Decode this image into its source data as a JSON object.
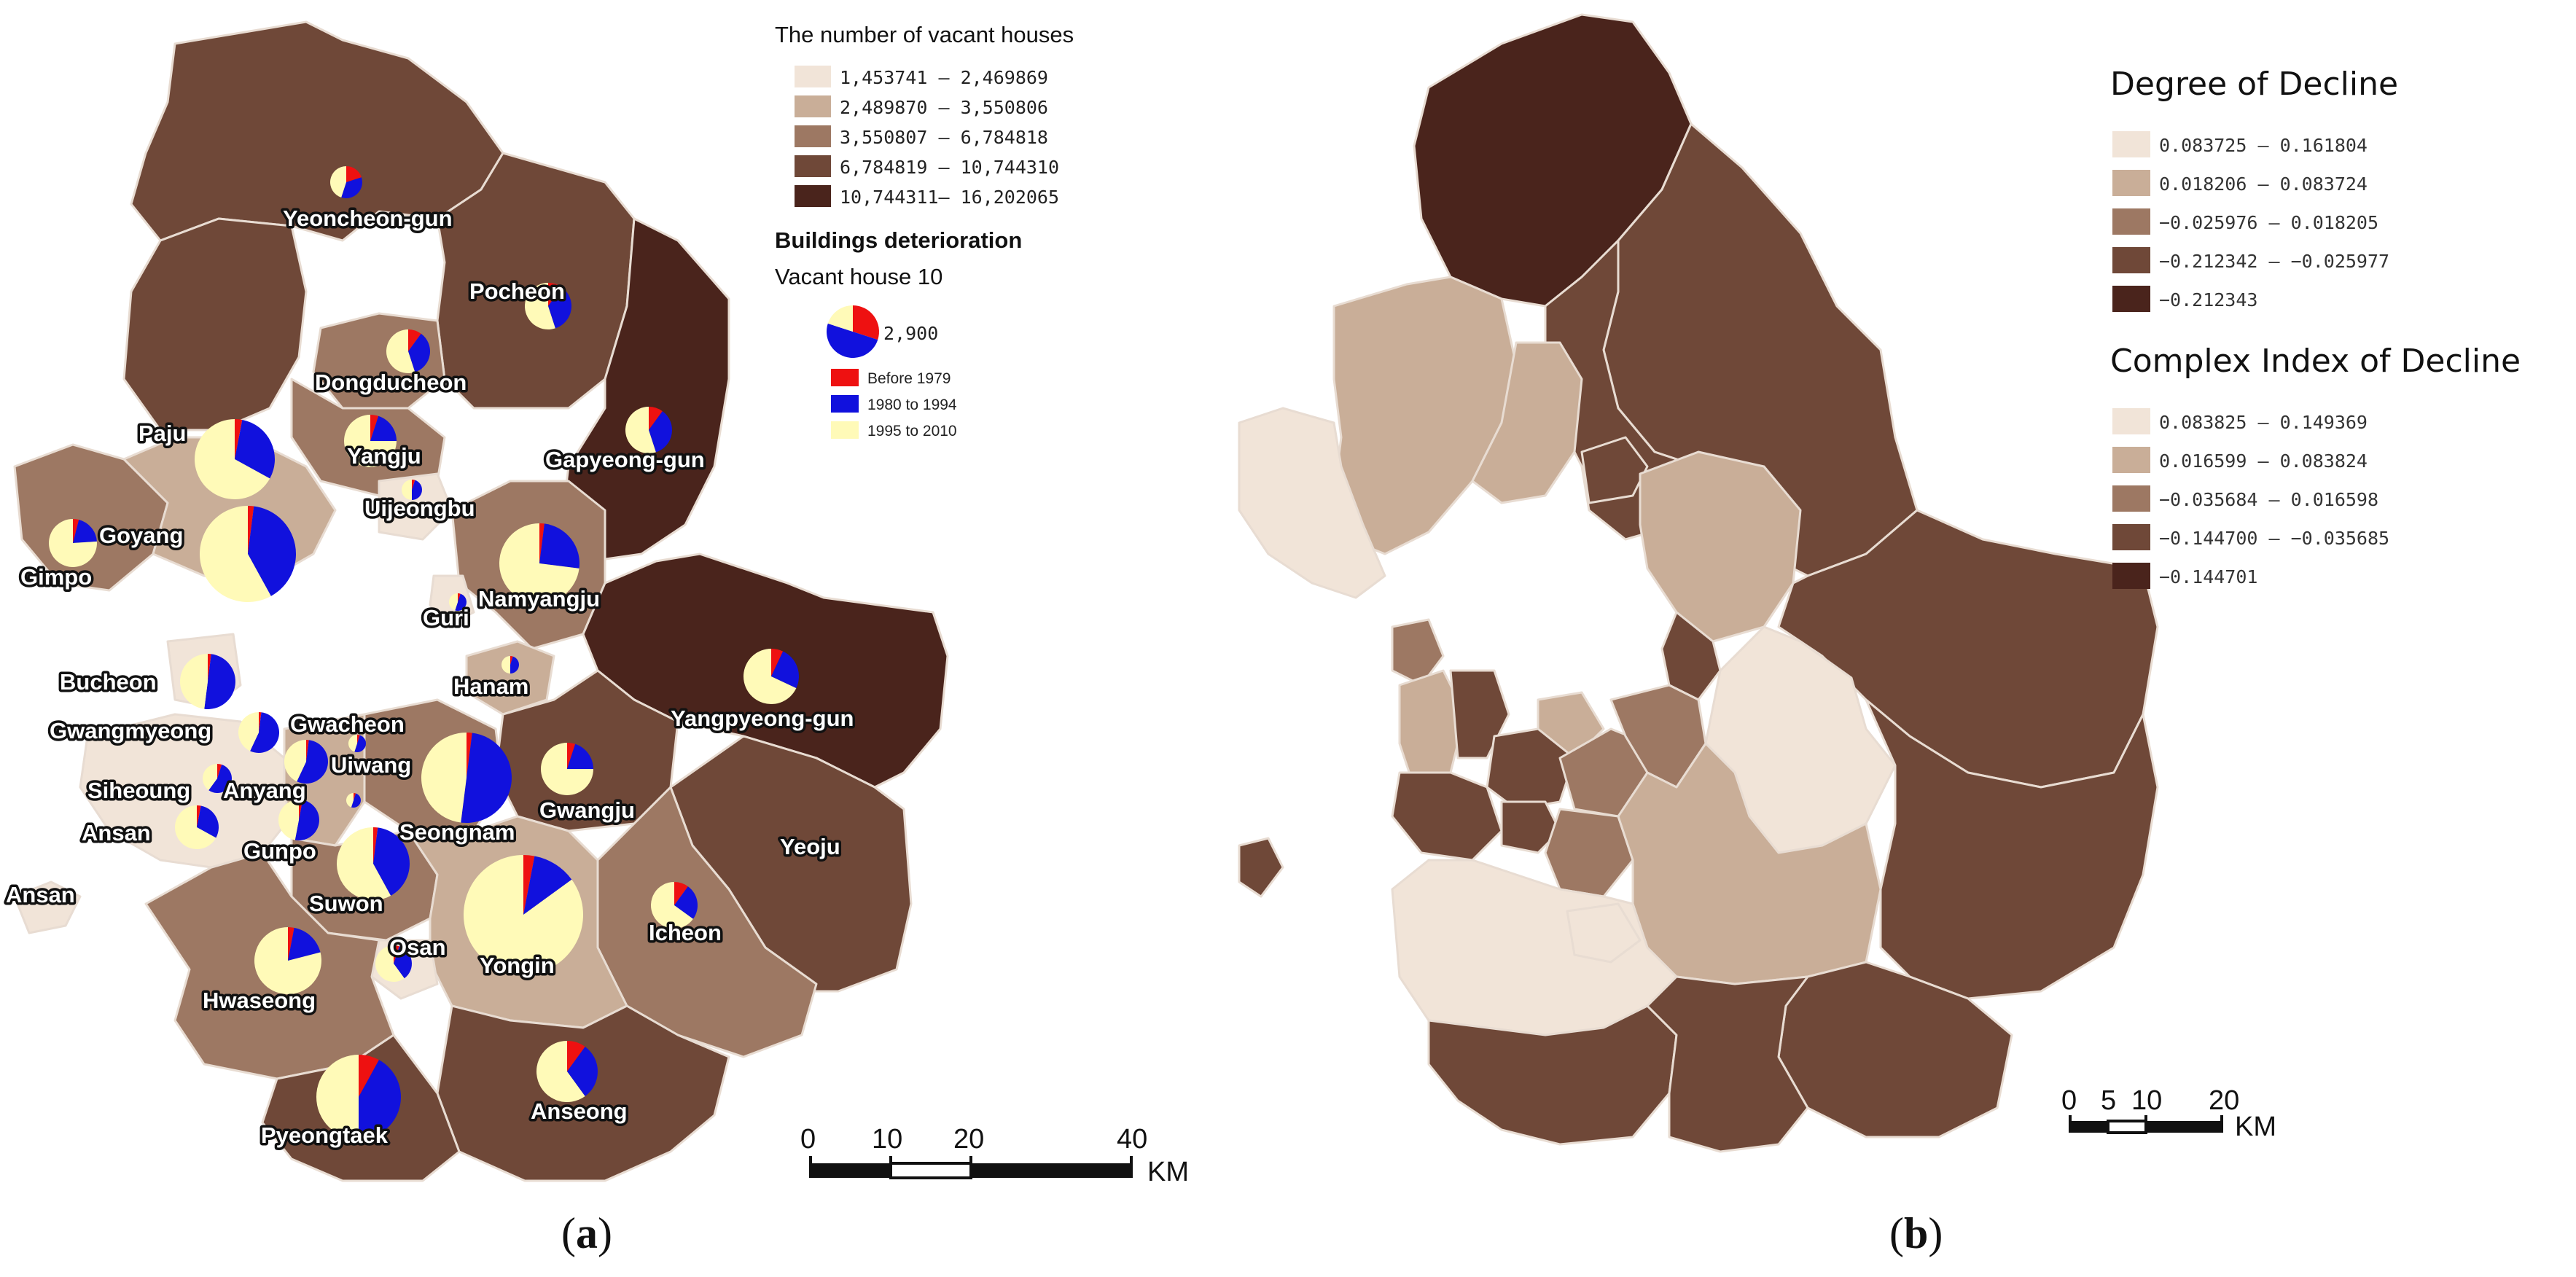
{
  "colors": {
    "class1": "#f1e4d8",
    "class2": "#c9ae98",
    "class3": "#9d7863",
    "class4": "#6f4838",
    "class5": "#4a241c",
    "pie_before1979": "#ee1111",
    "pie_1980_1994": "#1111dd",
    "pie_1995_2010": "#fffab8"
  },
  "panel_a": {
    "caption_letter": "a",
    "legend": {
      "title": "The number of vacant houses",
      "classes": [
        "1,453741 – 2,469869",
        "2,489870 – 3,550806",
        "3,550807 – 6,784818",
        "6,784819 – 10,744310",
        "10,744311– 16,202065"
      ],
      "pie_title": "Buildings deterioration",
      "pie_subtitle": "Vacant house 10",
      "pie_value": "2,900",
      "pie_items": [
        "Before 1979",
        "1980 to 1994",
        "1995 to 2010"
      ]
    },
    "labels": {
      "yeoncheon": "Yeoncheon-gun",
      "pocheon": "Pocheon",
      "dongducheon": "Dongducheon",
      "paju": "Paju",
      "yangju": "Yangju",
      "gapyeong": "Gapyeong-gun",
      "uijeongbu": "Uijeongbu",
      "goyang": "Goyang",
      "gimpo": "Gimpo",
      "guri": "Guri",
      "namyangju": "Namyangju",
      "bucheon": "Bucheon",
      "hanam": "Hanam",
      "yangpyeong": "Yangpyeong-gun",
      "gwangmyeong": "Gwangmyeong",
      "gwacheon": "Gwacheon",
      "uiwang": "Uiwang",
      "siheoung": "Siheoung",
      "anyang": "Anyang",
      "gwangju": "Gwangju",
      "ansan": "Ansan",
      "gunpo": "Gunpo",
      "seongnam": "Seongnam",
      "yeoju": "Yeoju",
      "ansan2": "Ansan",
      "suwon": "Suwon",
      "icheon": "Icheon",
      "osan": "Osan",
      "yongin": "Yongin",
      "hwaseong": "Hwaseong",
      "anseong": "Anseong",
      "pyeongtaek": "Pyeongtaek"
    },
    "scale": {
      "ticks": [
        "0",
        "10",
        "20",
        "40"
      ],
      "unit": "KM"
    }
  },
  "panel_b": {
    "caption_letter": "b",
    "legend1": {
      "title": "Degree of Decline",
      "classes": [
        "0.083725 – 0.161804",
        "0.018206 – 0.083724",
        "−0.025976 – 0.018205",
        "−0.212342 – −0.025977",
        "−0.212343"
      ]
    },
    "legend2": {
      "title": "Complex Index of Decline",
      "classes": [
        "0.083825 – 0.149369",
        "0.016599 – 0.083824",
        "−0.035684 – 0.016598",
        "−0.144700 – −0.035685",
        "−0.144701"
      ]
    },
    "scale": {
      "ticks": [
        "0",
        "5",
        "10",
        "20"
      ],
      "unit": "KM"
    }
  }
}
